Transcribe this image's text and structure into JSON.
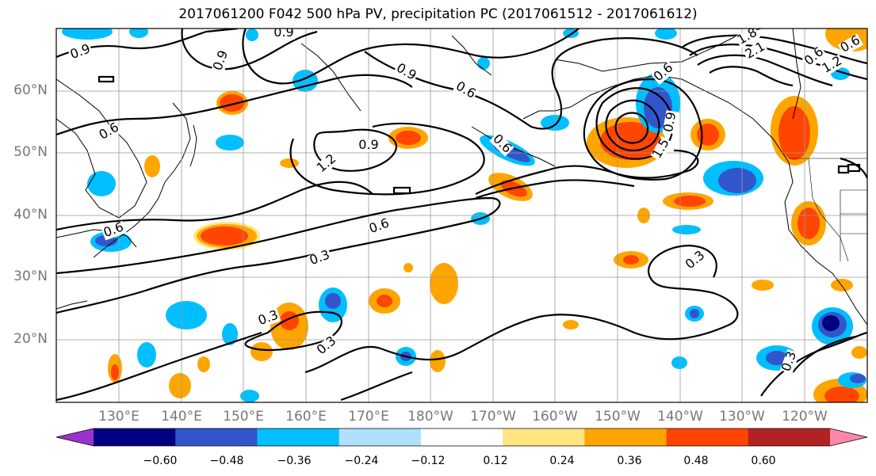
{
  "title": "2017061200 F042 500 hPa PV, precipitation PC (2017061512 - 2017061612)",
  "lat_labels": [
    "60°N",
    "50°N",
    "40°N",
    "30°N",
    "20°N"
  ],
  "lon_labels": [
    "130°E",
    "140°E",
    "150°E",
    "160°E",
    "170°E",
    "180°W",
    "170°W",
    "160°W",
    "150°W",
    "140°W",
    "130°W",
    "120°W"
  ],
  "colorbar": {
    "ticks": [
      "−0.60",
      "−0.48",
      "−0.36",
      "−0.24",
      "−0.12",
      "0.12",
      "0.24",
      "0.36",
      "0.48",
      "0.60"
    ],
    "colors": [
      "#9933CC",
      "#000080",
      "#3355CC",
      "#00BFFF",
      "#B0E0FF",
      "#FFFFFF",
      "#FFE680",
      "#FFA500",
      "#FF4500",
      "#B22222",
      "#FF88AA"
    ]
  },
  "contour_labels": [
    "0.9",
    "0.9",
    "0.9",
    "0.9",
    "1.2",
    "0.9",
    "0.6",
    "0.6",
    "0.6",
    "0.6",
    "0.6",
    "0.3",
    "0.3",
    "0.3",
    "0.3",
    "0.3",
    "1.8",
    "2.1",
    "1.5",
    "0.6",
    "1.2",
    "0.6",
    "0.9",
    "0.6"
  ]
}
